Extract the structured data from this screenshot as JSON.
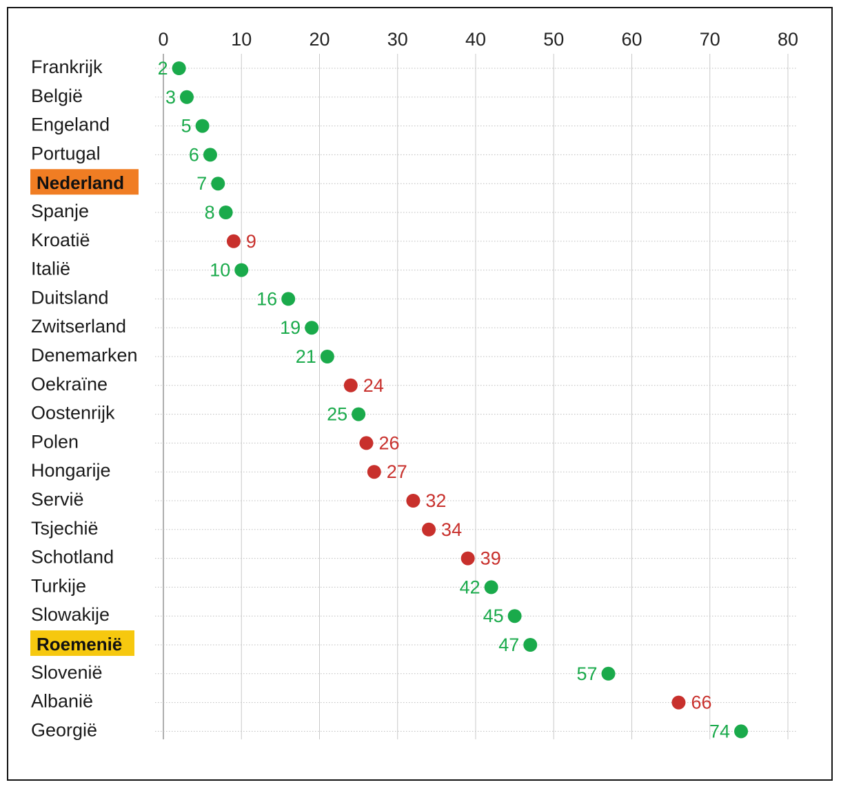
{
  "chart_data": {
    "type": "scatter",
    "title": "",
    "xlabel": "",
    "ylabel": "",
    "xlim": [
      0,
      80
    ],
    "x_ticks": [
      "0",
      "10",
      "20",
      "30",
      "40",
      "50",
      "60",
      "70",
      "80"
    ],
    "grid": true,
    "colors": {
      "green": "#1aaa4b",
      "red": "#c8302c",
      "highlight_orange": "#f07d23",
      "highlight_yellow": "#f6c80f",
      "grid": "#c8c8c8",
      "dotted": "#bdbdbd"
    },
    "points": [
      {
        "label": "Frankrijk",
        "value": 2,
        "display": "2",
        "color": "green"
      },
      {
        "label": "België",
        "value": 3,
        "display": "3",
        "color": "green"
      },
      {
        "label": "Engeland",
        "value": 5,
        "display": "5",
        "color": "green"
      },
      {
        "label": "Portugal",
        "value": 6,
        "display": "6",
        "color": "green"
      },
      {
        "label": "Nederland",
        "value": 7,
        "display": "7",
        "color": "green",
        "highlight": "orange"
      },
      {
        "label": "Spanje",
        "value": 8,
        "display": "8",
        "color": "green"
      },
      {
        "label": "Kroatië",
        "value": 9,
        "display": "9",
        "color": "red"
      },
      {
        "label": "Italië",
        "value": 10,
        "display": "10",
        "color": "green"
      },
      {
        "label": "Duitsland",
        "value": 16,
        "display": "16",
        "color": "green"
      },
      {
        "label": "Zwitserland",
        "value": 19,
        "display": "19",
        "color": "green"
      },
      {
        "label": "Denemarken",
        "value": 21,
        "display": "21",
        "color": "green"
      },
      {
        "label": "Oekraïne",
        "value": 24,
        "display": "24",
        "color": "red"
      },
      {
        "label": "Oostenrijk",
        "value": 25,
        "display": "25",
        "color": "green"
      },
      {
        "label": "Polen",
        "value": 26,
        "display": "26",
        "color": "red"
      },
      {
        "label": "Hongarije",
        "value": 27,
        "display": "27",
        "color": "red"
      },
      {
        "label": "Servië",
        "value": 32,
        "display": "32",
        "color": "red"
      },
      {
        "label": "Tsjechië",
        "value": 34,
        "display": "34",
        "color": "red"
      },
      {
        "label": "Schotland",
        "value": 39,
        "display": "39",
        "color": "red"
      },
      {
        "label": "Turkije",
        "value": 42,
        "display": "42",
        "color": "green"
      },
      {
        "label": "Slowakije",
        "value": 45,
        "display": "45",
        "color": "green"
      },
      {
        "label": "Roemenië",
        "value": 47,
        "display": "47",
        "color": "green",
        "highlight": "yellow"
      },
      {
        "label": "Slovenië",
        "value": 57,
        "display": "57",
        "color": "green"
      },
      {
        "label": "Albanië",
        "value": 66,
        "display": "66",
        "color": "red"
      },
      {
        "label": "Georgië",
        "value": 74,
        "display": "74",
        "color": "green"
      }
    ]
  }
}
